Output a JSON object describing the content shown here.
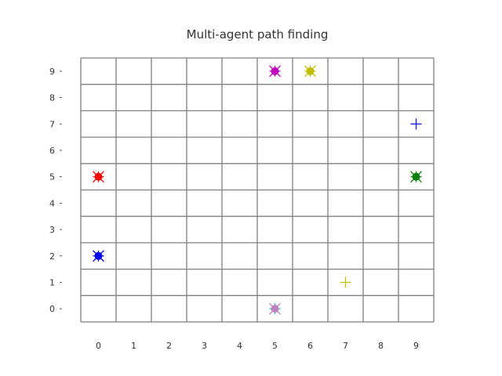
{
  "chart_data": {
    "type": "scatter",
    "title": "Multi-agent path finding",
    "xlabel": "",
    "ylabel": "",
    "xlim": [
      -0.5,
      9.5
    ],
    "ylim": [
      -0.5,
      9.5
    ],
    "xticks": [
      "0",
      "1",
      "2",
      "3",
      "4",
      "5",
      "6",
      "7",
      "8",
      "9"
    ],
    "yticks": [
      "0",
      "1",
      "2",
      "3",
      "4",
      "5",
      "6",
      "7",
      "8",
      "9"
    ],
    "grid": true,
    "grid_color": "#808080",
    "agents": [
      {
        "color": "#ff0000",
        "position": [
          0,
          5
        ],
        "goal": [
          0,
          5
        ]
      },
      {
        "color": "#0000ff",
        "position": [
          0,
          2
        ],
        "goal": [
          0,
          2
        ]
      },
      {
        "color": "#0000ff",
        "position": null,
        "goal": [
          9,
          7
        ]
      },
      {
        "color": "#008000",
        "position": [
          9,
          5
        ],
        "goal": [
          9,
          5
        ]
      },
      {
        "color": "#bfbf00",
        "position": [
          6,
          9
        ],
        "goal": [
          6,
          9
        ]
      },
      {
        "color": "#bfbf00",
        "position": null,
        "goal": [
          7,
          1
        ]
      },
      {
        "color": "#bf00bf",
        "position": [
          5,
          9
        ],
        "goal": [
          5,
          9
        ]
      },
      {
        "color": "#00bfbf",
        "position": null,
        "goal": [
          5,
          0
        ]
      },
      {
        "color": "#c080c0",
        "position": [
          5,
          0
        ],
        "goal": null
      }
    ]
  }
}
